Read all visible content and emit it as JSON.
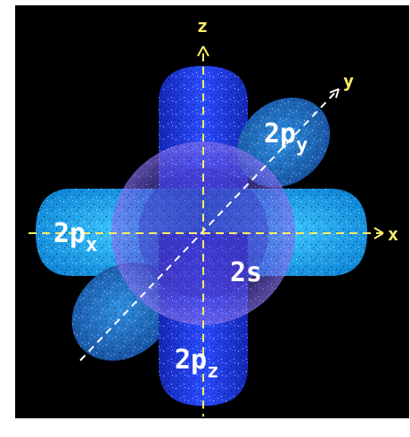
{
  "axes": {
    "x": "x",
    "y": "y",
    "z": "z"
  },
  "labels": {
    "s": {
      "main": "2s",
      "sub": ""
    },
    "px": {
      "main": "2p",
      "sub": "x"
    },
    "py": {
      "main": "2p",
      "sub": "y"
    },
    "pz": {
      "main": "2p",
      "sub": "z"
    }
  },
  "colors": {
    "background": "#000000",
    "axis": "#ffee66",
    "label": "#ffffff",
    "px_lobe": "#1aa8f0",
    "py_lobe": "#1e72c8",
    "pz_lobe": "#1a3ae0",
    "s_sphere": "#7a62e8",
    "diagonal": "#ffffff"
  }
}
